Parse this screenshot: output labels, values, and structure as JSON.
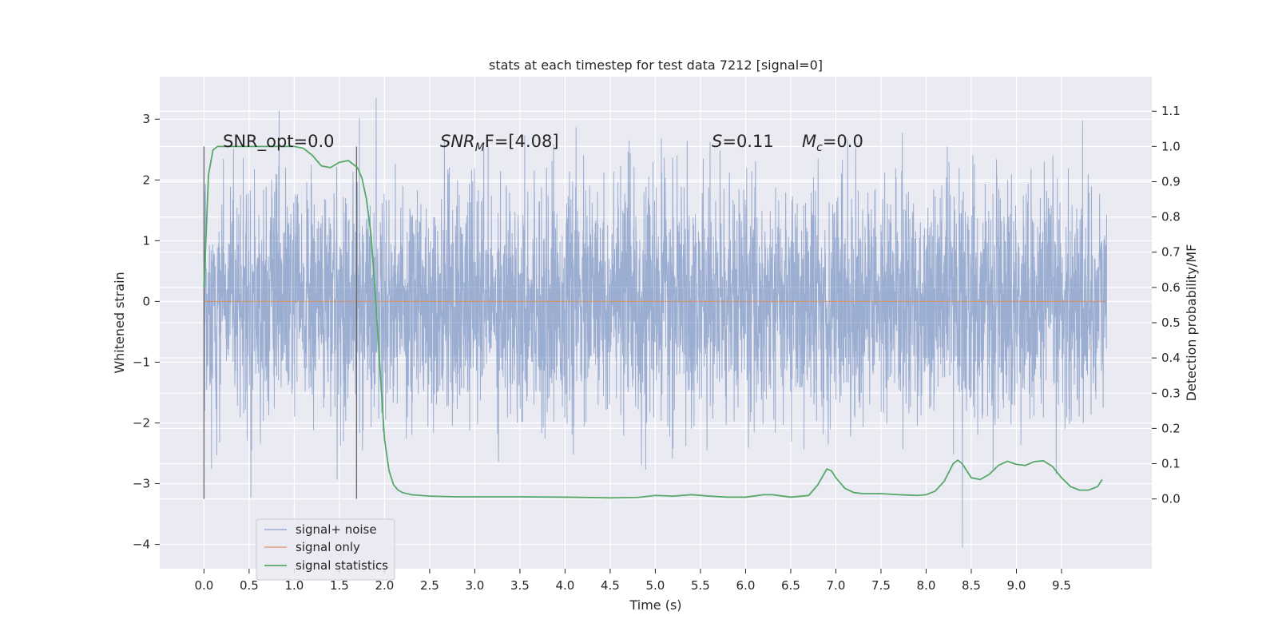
{
  "chart_data": {
    "type": "line",
    "title": "stats at each timestep for test data 7212 [signal=0]",
    "xlabel": "Time (s)",
    "ylabel": "Whitened strain",
    "y2label": "Detection probability/MF",
    "xlim": [
      -0.49,
      10.5
    ],
    "ylim": [
      -4.4,
      3.7
    ],
    "y2lim": [
      -0.198,
      1.198
    ],
    "xticks": [
      "0.0",
      "0.5",
      "1.0",
      "1.5",
      "2.0",
      "2.5",
      "3.0",
      "3.5",
      "4.0",
      "4.5",
      "5.0",
      "5.5",
      "6.0",
      "6.5",
      "7.0",
      "7.5",
      "8.0",
      "8.5",
      "9.0",
      "9.5"
    ],
    "yticks": [
      "3",
      "2",
      "1",
      "0",
      "−1",
      "−2",
      "−3",
      "−4"
    ],
    "y2ticks": [
      "1.1",
      "1.0",
      "0.9",
      "0.8",
      "0.7",
      "0.6",
      "0.5",
      "0.4",
      "0.3",
      "0.2",
      "0.1",
      "0.0"
    ],
    "grid": true,
    "legend_position": "lower-left",
    "annotations": {
      "snr_opt": "SNR_opt=0.0",
      "snr_mf_var": "SNR",
      "snr_mf_sub": "M",
      "snr_mf_tail": "F=[4.08]",
      "s_var": "S",
      "s_val": "=0.11",
      "mc_var": "M",
      "mc_sub": "c",
      "mc_val": "=0.0"
    },
    "vlines_x": [
      0.0,
      1.69
    ],
    "series": [
      {
        "name": "signal+ noise",
        "color": "#4c72b0",
        "axis": "left",
        "x_range": [
          0.0,
          10.0
        ],
        "noise_sigma": 0.95,
        "observed_min": -4.05,
        "observed_max": 3.35
      },
      {
        "name": "signal only",
        "color": "#dd8452",
        "axis": "left",
        "x": [
          0.0,
          10.0
        ],
        "y": [
          0.0,
          0.0
        ]
      },
      {
        "name": "signal statistics",
        "color": "#55a868",
        "axis": "right",
        "x": [
          0.0,
          0.05,
          0.1,
          0.15,
          0.2,
          0.3,
          0.4,
          0.5,
          0.6,
          0.7,
          0.8,
          0.9,
          1.0,
          1.1,
          1.2,
          1.3,
          1.4,
          1.5,
          1.6,
          1.7,
          1.75,
          1.8,
          1.85,
          1.9,
          1.95,
          2.0,
          2.05,
          2.1,
          2.15,
          2.2,
          2.3,
          2.5,
          2.8,
          3.0,
          3.5,
          4.0,
          4.5,
          4.8,
          5.0,
          5.2,
          5.4,
          5.6,
          5.8,
          6.0,
          6.2,
          6.3,
          6.5,
          6.7,
          6.8,
          6.9,
          6.95,
          7.0,
          7.1,
          7.2,
          7.3,
          7.5,
          7.7,
          7.9,
          8.0,
          8.1,
          8.2,
          8.3,
          8.35,
          8.4,
          8.5,
          8.6,
          8.7,
          8.8,
          8.9,
          9.0,
          9.1,
          9.2,
          9.3,
          9.4,
          9.5,
          9.6,
          9.7,
          9.8,
          9.9,
          9.95
        ],
        "y": [
          0.6,
          0.92,
          0.99,
          1.0,
          1.0,
          1.0,
          1.0,
          1.0,
          1.0,
          1.0,
          1.0,
          1.0,
          1.0,
          0.995,
          0.975,
          0.945,
          0.94,
          0.955,
          0.96,
          0.94,
          0.91,
          0.85,
          0.75,
          0.57,
          0.37,
          0.17,
          0.08,
          0.04,
          0.025,
          0.018,
          0.012,
          0.008,
          0.006,
          0.006,
          0.006,
          0.005,
          0.003,
          0.004,
          0.01,
          0.008,
          0.012,
          0.008,
          0.005,
          0.005,
          0.012,
          0.012,
          0.005,
          0.01,
          0.04,
          0.085,
          0.08,
          0.06,
          0.03,
          0.018,
          0.015,
          0.015,
          0.012,
          0.01,
          0.012,
          0.022,
          0.05,
          0.1,
          0.11,
          0.1,
          0.06,
          0.055,
          0.07,
          0.095,
          0.107,
          0.098,
          0.095,
          0.106,
          0.108,
          0.092,
          0.06,
          0.035,
          0.025,
          0.025,
          0.035,
          0.055
        ]
      }
    ]
  }
}
